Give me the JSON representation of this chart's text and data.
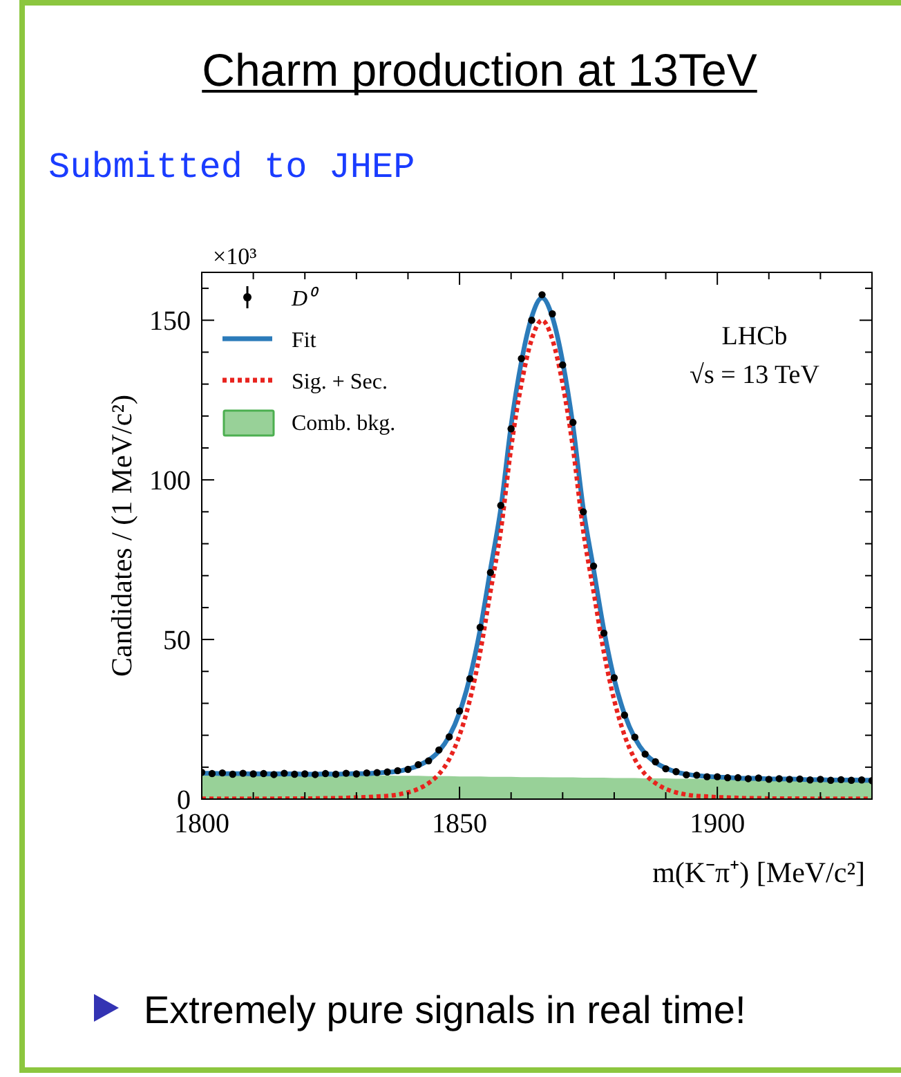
{
  "chart_data": {
    "type": "line",
    "title": "Charm production at 13TeV",
    "subtitle": "Submitted to JHEP",
    "xlabel": "m(K⁻π⁺) [MeV/c²]",
    "ylabel": "Candidates / (1 MeV/c²)",
    "annotations": [
      "×10³",
      "LHCb",
      "√s = 13 TeV",
      "Extremely pure signals in real time!"
    ],
    "x": [
      1800,
      1802,
      1804,
      1806,
      1808,
      1810,
      1812,
      1814,
      1816,
      1818,
      1820,
      1822,
      1824,
      1826,
      1828,
      1830,
      1832,
      1834,
      1836,
      1838,
      1840,
      1842,
      1844,
      1846,
      1848,
      1850,
      1852,
      1854,
      1856,
      1858,
      1860,
      1862,
      1864,
      1866,
      1868,
      1870,
      1872,
      1874,
      1876,
      1878,
      1880,
      1882,
      1884,
      1886,
      1888,
      1890,
      1892,
      1894,
      1896,
      1898,
      1900,
      1902,
      1904,
      1906,
      1908,
      1910,
      1912,
      1914,
      1916,
      1918,
      1920,
      1922,
      1924,
      1926,
      1928,
      1930
    ],
    "series": [
      {
        "name": "D⁰",
        "type": "scatter",
        "color": "#000000",
        "marker": "circle",
        "values": [
          8.4,
          8.0,
          8.2,
          7.8,
          8.1,
          7.9,
          8.0,
          7.7,
          8.1,
          7.8,
          7.9,
          7.7,
          8.0,
          7.8,
          8.1,
          7.9,
          8.2,
          8.3,
          8.5,
          8.9,
          9.3,
          10.8,
          12.0,
          15.4,
          19.5,
          27.6,
          37.7,
          53.8,
          71,
          92,
          116,
          138,
          150,
          158,
          152,
          136,
          118,
          90,
          73,
          52,
          38.0,
          26.3,
          19.4,
          14.1,
          11.7,
          9.5,
          8.6,
          7.6,
          7.5,
          7.0,
          7.0,
          6.7,
          6.7,
          6.4,
          6.6,
          6.2,
          6.4,
          6.2,
          6.3,
          6.0,
          6.2,
          5.9,
          6.1,
          5.9,
          6.0,
          5.8
        ]
      },
      {
        "name": "Fit",
        "color": "#2b7bba",
        "line_style": "solid",
        "values": [
          8.1,
          8.1,
          8.0,
          8.0,
          8.0,
          7.9,
          7.9,
          7.9,
          7.9,
          7.9,
          7.8,
          7.8,
          7.9,
          7.8,
          7.9,
          8.0,
          8.0,
          8.2,
          8.4,
          8.7,
          9.4,
          10.5,
          12.2,
          15.0,
          19.7,
          27.1,
          38.1,
          53.1,
          72,
          91,
          117,
          137,
          151,
          157,
          151,
          137,
          117,
          91,
          72,
          53,
          37.6,
          26.6,
          19.1,
          14.3,
          11.5,
          9.7,
          8.5,
          7.8,
          7.4,
          7.1,
          6.9,
          6.8,
          6.6,
          6.5,
          6.5,
          6.3,
          6.3,
          6.3,
          6.2,
          6.1,
          6.1,
          6.0,
          6.0,
          6.0,
          5.9,
          5.9
        ]
      },
      {
        "name": "Sig. + Sec.",
        "color": "#e8231e",
        "line_style": "dotted",
        "values": [
          0.1,
          0.1,
          0.1,
          0.1,
          0.1,
          0.1,
          0.1,
          0.1,
          0.2,
          0.2,
          0.2,
          0.2,
          0.3,
          0.3,
          0.4,
          0.5,
          0.6,
          0.8,
          1.0,
          1.4,
          2.1,
          3.2,
          5.0,
          7.8,
          12.5,
          20,
          31,
          46,
          65,
          84,
          110,
          130,
          144,
          150,
          144,
          130,
          110,
          84,
          65,
          46,
          31,
          20,
          12.5,
          7.8,
          5.0,
          3.2,
          2.1,
          1.4,
          1.0,
          0.8,
          0.6,
          0.5,
          0.4,
          0.3,
          0.3,
          0.2,
          0.2,
          0.2,
          0.2,
          0.1,
          0.1,
          0.1,
          0.1,
          0.1,
          0.1,
          0.1
        ]
      },
      {
        "name": "Comb. bkg.",
        "type": "area",
        "color": "#98d198",
        "values": [
          8.0,
          8.0,
          7.9,
          7.9,
          7.9,
          7.8,
          7.8,
          7.8,
          7.7,
          7.7,
          7.6,
          7.6,
          7.6,
          7.5,
          7.5,
          7.5,
          7.4,
          7.4,
          7.4,
          7.3,
          7.3,
          7.3,
          7.2,
          7.2,
          7.2,
          7.1,
          7.1,
          7.1,
          7.0,
          7.0,
          7.0,
          6.9,
          6.9,
          6.9,
          6.8,
          6.8,
          6.8,
          6.7,
          6.7,
          6.7,
          6.6,
          6.6,
          6.6,
          6.5,
          6.5,
          6.5,
          6.4,
          6.4,
          6.4,
          6.3,
          6.3,
          6.3,
          6.2,
          6.2,
          6.2,
          6.1,
          6.1,
          6.1,
          6.0,
          6.0,
          6.0,
          5.9,
          5.9,
          5.9,
          5.8,
          5.8
        ]
      }
    ],
    "xlim": [
      1800,
      1930
    ],
    "xticks": [
      1800,
      {
        "value": 1810,
        "label": null
      },
      {
        "value": 1820,
        "label": null
      },
      {
        "value": 1830,
        "label": null
      },
      {
        "value": 1840,
        "label": null
      },
      1850,
      {
        "value": 1860,
        "label": null
      },
      {
        "value": 1870,
        "label": null
      },
      {
        "value": 1880,
        "label": null
      },
      {
        "value": 1890,
        "label": null
      },
      1900,
      {
        "value": 1910,
        "label": null
      },
      {
        "value": 1920,
        "label": null
      }
    ],
    "ylim": [
      0,
      165
    ],
    "yticks": [
      0,
      {
        "value": 10,
        "label": null
      },
      {
        "value": 20,
        "label": null
      },
      {
        "value": 30,
        "label": null
      },
      {
        "value": 40,
        "label": null
      },
      50,
      {
        "value": 60,
        "label": null
      },
      {
        "value": 70,
        "label": null
      },
      {
        "value": 80,
        "label": null
      },
      {
        "value": 90,
        "label": null
      },
      100,
      {
        "value": 110,
        "label": null
      },
      {
        "value": 120,
        "label": null
      },
      {
        "value": 130,
        "label": null
      },
      {
        "value": 140,
        "label": null
      },
      150,
      {
        "value": 160,
        "label": null
      }
    ],
    "grid": false,
    "legend": "top left"
  }
}
